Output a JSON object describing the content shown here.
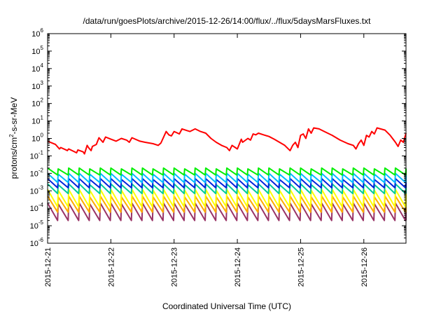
{
  "chart_data": {
    "type": "line",
    "title": "/data/run/goesPlots/archive/2015-12-26/14:00/flux/../flux/5daysMarsFluxes.txt",
    "xlabel": "Coordinated Universal Time (UTC)",
    "ylabel_parts": [
      "protons/cm",
      "2",
      "-s-sr-MeV"
    ],
    "xscale": "time",
    "yscale": "log",
    "xlim": [
      "2015-12-21",
      "2015-12-26 16:00"
    ],
    "ylim": [
      1e-06,
      1000000.0
    ],
    "grid": false,
    "legend": "none",
    "x_ticks": [
      "2015-12-21",
      "2015-12-22",
      "2015-12-23",
      "2015-12-24",
      "2015-12-25",
      "2015-12-26"
    ],
    "y_ticks": [
      {
        "base": "10",
        "exp": "-6"
      },
      {
        "base": "10",
        "exp": "-5"
      },
      {
        "base": "10",
        "exp": "-4"
      },
      {
        "base": "10",
        "exp": "-3"
      },
      {
        "base": "10",
        "exp": "-2"
      },
      {
        "base": "10",
        "exp": "-1"
      },
      {
        "base": "10",
        "exp": "0"
      },
      {
        "base": "10",
        "exp": "1"
      },
      {
        "base": "10",
        "exp": "2"
      },
      {
        "base": "10",
        "exp": "3"
      },
      {
        "base": "10",
        "exp": "4"
      },
      {
        "base": "10",
        "exp": "5"
      },
      {
        "base": "10",
        "exp": "6"
      }
    ],
    "series": [
      {
        "color": "#ff0000",
        "points": [
          [
            "2015-12-21 00:00",
            0.7
          ],
          [
            "2015-12-21 03:00",
            0.45
          ],
          [
            "2015-12-21 04:30",
            0.25
          ],
          [
            "2015-12-21 05:00",
            0.3
          ],
          [
            "2015-12-21 07:00",
            0.22
          ],
          [
            "2015-12-21 07:30",
            0.2
          ],
          [
            "2015-12-21 08:00",
            0.25
          ],
          [
            "2015-12-21 10:00",
            0.18
          ],
          [
            "2015-12-21 11:00",
            0.15
          ],
          [
            "2015-12-21 11:30",
            0.22
          ],
          [
            "2015-12-21 13:30",
            0.17
          ],
          [
            "2015-12-21 14:00",
            0.13
          ],
          [
            "2015-12-21 15:00",
            0.4
          ],
          [
            "2015-12-21 15:30",
            0.3
          ],
          [
            "2015-12-21 16:30",
            0.2
          ],
          [
            "2015-12-21 17:00",
            0.35
          ],
          [
            "2015-12-21 18:30",
            0.45
          ],
          [
            "2015-12-21 19:30",
            1.1
          ],
          [
            "2015-12-21 21:00",
            0.6
          ],
          [
            "2015-12-21 22:00",
            1.2
          ],
          [
            "2015-12-22 00:00",
            0.9
          ],
          [
            "2015-12-22 02:00",
            0.7
          ],
          [
            "2015-12-22 04:00",
            1.0
          ],
          [
            "2015-12-22 06:00",
            0.8
          ],
          [
            "2015-12-22 07:00",
            0.6
          ],
          [
            "2015-12-22 08:00",
            1.1
          ],
          [
            "2015-12-22 11:00",
            0.7
          ],
          [
            "2015-12-22 13:00",
            0.6
          ],
          [
            "2015-12-22 16:00",
            0.5
          ],
          [
            "2015-12-22 18:00",
            0.4
          ],
          [
            "2015-12-22 19:00",
            0.55
          ],
          [
            "2015-12-22 21:00",
            2.5
          ],
          [
            "2015-12-22 22:00",
            1.6
          ],
          [
            "2015-12-22 23:00",
            1.4
          ],
          [
            "2015-12-23 00:00",
            2.5
          ],
          [
            "2015-12-23 02:00",
            1.8
          ],
          [
            "2015-12-23 03:00",
            3.5
          ],
          [
            "2015-12-23 05:00",
            2.8
          ],
          [
            "2015-12-23 06:00",
            2.5
          ],
          [
            "2015-12-23 08:00",
            3.5
          ],
          [
            "2015-12-23 10:00",
            2.5
          ],
          [
            "2015-12-23 12:00",
            2.0
          ],
          [
            "2015-12-23 14:00",
            1.0
          ],
          [
            "2015-12-23 16:00",
            0.6
          ],
          [
            "2015-12-23 18:00",
            0.4
          ],
          [
            "2015-12-23 20:00",
            0.3
          ],
          [
            "2015-12-23 21:00",
            0.2
          ],
          [
            "2015-12-23 22:00",
            0.4
          ],
          [
            "2015-12-24 00:00",
            0.25
          ],
          [
            "2015-12-24 01:30",
            0.9
          ],
          [
            "2015-12-24 02:00",
            0.6
          ],
          [
            "2015-12-24 04:00",
            1.0
          ],
          [
            "2015-12-24 05:00",
            0.8
          ],
          [
            "2015-12-24 06:00",
            1.8
          ],
          [
            "2015-12-24 07:00",
            1.6
          ],
          [
            "2015-12-24 08:00",
            2.0
          ],
          [
            "2015-12-24 10:00",
            1.6
          ],
          [
            "2015-12-24 12:00",
            1.3
          ],
          [
            "2015-12-24 14:00",
            0.9
          ],
          [
            "2015-12-24 16:00",
            0.6
          ],
          [
            "2015-12-24 18:00",
            0.4
          ],
          [
            "2015-12-24 20:00",
            0.2
          ],
          [
            "2015-12-24 21:00",
            0.4
          ],
          [
            "2015-12-24 22:00",
            0.6
          ],
          [
            "2015-12-24 23:00",
            0.3
          ],
          [
            "2015-12-25 00:00",
            1.5
          ],
          [
            "2015-12-25 01:00",
            1.8
          ],
          [
            "2015-12-25 02:00",
            1.0
          ],
          [
            "2015-12-25 03:00",
            3.5
          ],
          [
            "2015-12-25 04:00",
            2.0
          ],
          [
            "2015-12-25 05:00",
            4.0
          ],
          [
            "2015-12-25 07:00",
            3.5
          ],
          [
            "2015-12-25 09:00",
            2.5
          ],
          [
            "2015-12-25 12:00",
            1.5
          ],
          [
            "2015-12-25 15:00",
            0.8
          ],
          [
            "2015-12-25 18:00",
            0.5
          ],
          [
            "2015-12-25 20:00",
            0.4
          ],
          [
            "2015-12-25 21:00",
            0.25
          ],
          [
            "2015-12-25 22:00",
            0.5
          ],
          [
            "2015-12-25 23:00",
            0.8
          ],
          [
            "2015-12-26 00:00",
            0.4
          ],
          [
            "2015-12-26 01:00",
            1.5
          ],
          [
            "2015-12-26 02:00",
            1.2
          ],
          [
            "2015-12-26 03:00",
            2.5
          ],
          [
            "2015-12-26 04:00",
            1.8
          ],
          [
            "2015-12-26 05:00",
            4.0
          ],
          [
            "2015-12-26 08:00",
            3.0
          ],
          [
            "2015-12-26 10:00",
            1.5
          ],
          [
            "2015-12-26 12:00",
            0.6
          ],
          [
            "2015-12-26 13:00",
            0.35
          ],
          [
            "2015-12-26 14:00",
            0.8
          ],
          [
            "2015-12-26 15:00",
            0.6
          ],
          [
            "2015-12-26 16:00",
            2.0
          ]
        ]
      },
      {
        "color": "#00ee00",
        "sawtooth": {
          "low": 0.008,
          "high": 0.02,
          "period_hours": 4
        }
      },
      {
        "color": "#00bbff",
        "sawtooth": {
          "low": 0.003,
          "high": 0.01,
          "period_hours": 4
        }
      },
      {
        "color": "#0022dd",
        "sawtooth": {
          "low": 0.0015,
          "high": 0.005,
          "period_hours": 4
        }
      },
      {
        "color": "#00cc99",
        "sawtooth": {
          "low": 0.0007,
          "high": 0.0025,
          "period_hours": 4
        }
      },
      {
        "color": "#ffff00",
        "sawtooth": {
          "low": 0.00012,
          "high": 0.0012,
          "period_hours": 4
        }
      },
      {
        "color": "#ffaa00",
        "sawtooth": {
          "low": 6e-05,
          "high": 0.0005,
          "period_hours": 4
        }
      },
      {
        "color": "#993366",
        "sawtooth": {
          "low": 2e-05,
          "high": 0.0002,
          "period_hours": 4
        }
      }
    ]
  }
}
